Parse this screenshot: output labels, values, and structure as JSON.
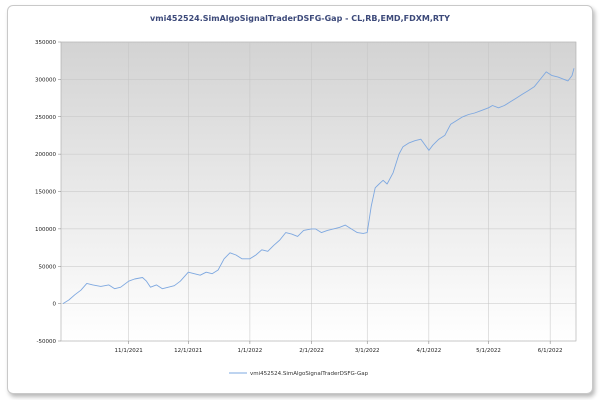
{
  "chart_data": {
    "type": "line",
    "title": "vmi452524.SimAlgoSignalTraderDSFG-Gap - CL,RB,EMD,FDXM,RTY",
    "xlabel": "",
    "ylabel": "",
    "ylim": [
      -50000,
      350000
    ],
    "y_ticks": [
      -50000,
      0,
      50000,
      100000,
      150000,
      200000,
      250000,
      300000,
      350000
    ],
    "y_tick_labels": [
      "-50000",
      "0",
      "50000",
      "100000",
      "150000",
      "200000",
      "250000",
      "300000",
      "350000"
    ],
    "xlim": [
      "2021-09-28",
      "2022-06-14"
    ],
    "x_ticks": [
      "2021-11-01",
      "2021-12-01",
      "2022-01-01",
      "2022-02-01",
      "2022-03-01",
      "2022-04-01",
      "2022-05-01",
      "2022-06-01"
    ],
    "x_tick_labels": [
      "11/1/2021",
      "12/1/2021",
      "1/1/2022",
      "2/1/2022",
      "3/1/2022",
      "4/1/2022",
      "5/1/2022",
      "6/1/2022"
    ],
    "grid": true,
    "legend_position": "bottom",
    "series": [
      {
        "name": "vmi452524.SimAlgoSignalTraderDSFG-Gap",
        "color": "#7ea8e0",
        "x": [
          "2021-09-29",
          "2021-10-02",
          "2021-10-05",
          "2021-10-08",
          "2021-10-11",
          "2021-10-14",
          "2021-10-18",
          "2021-10-22",
          "2021-10-25",
          "2021-10-28",
          "2021-11-01",
          "2021-11-04",
          "2021-11-08",
          "2021-11-10",
          "2021-11-12",
          "2021-11-15",
          "2021-11-18",
          "2021-11-21",
          "2021-11-24",
          "2021-11-27",
          "2021-12-01",
          "2021-12-04",
          "2021-12-07",
          "2021-12-10",
          "2021-12-13",
          "2021-12-16",
          "2021-12-19",
          "2021-12-22",
          "2021-12-25",
          "2021-12-28",
          "2022-01-01",
          "2022-01-04",
          "2022-01-07",
          "2022-01-10",
          "2022-01-13",
          "2022-01-16",
          "2022-01-19",
          "2022-01-22",
          "2022-01-25",
          "2022-01-28",
          "2022-02-01",
          "2022-02-03",
          "2022-02-06",
          "2022-02-09",
          "2022-02-12",
          "2022-02-15",
          "2022-02-18",
          "2022-02-21",
          "2022-02-24",
          "2022-02-27",
          "2022-03-01",
          "2022-03-03",
          "2022-03-05",
          "2022-03-07",
          "2022-03-09",
          "2022-03-11",
          "2022-03-14",
          "2022-03-17",
          "2022-03-19",
          "2022-03-22",
          "2022-03-25",
          "2022-03-28",
          "2022-04-01",
          "2022-04-03",
          "2022-04-06",
          "2022-04-09",
          "2022-04-12",
          "2022-04-15",
          "2022-04-18",
          "2022-04-21",
          "2022-04-24",
          "2022-04-27",
          "2022-05-01",
          "2022-05-03",
          "2022-05-06",
          "2022-05-09",
          "2022-05-12",
          "2022-05-15",
          "2022-05-18",
          "2022-05-21",
          "2022-05-24",
          "2022-05-27",
          "2022-05-30",
          "2022-06-02",
          "2022-06-05",
          "2022-06-08",
          "2022-06-10",
          "2022-06-12",
          "2022-06-13"
        ],
        "values": [
          0,
          5000,
          12000,
          18000,
          27000,
          25000,
          23000,
          25000,
          20000,
          22000,
          30000,
          33000,
          35000,
          30000,
          22000,
          25000,
          20000,
          22000,
          24000,
          30000,
          42000,
          40000,
          38000,
          42000,
          40000,
          45000,
          60000,
          68000,
          65000,
          60000,
          60000,
          65000,
          72000,
          70000,
          78000,
          85000,
          95000,
          93000,
          90000,
          98000,
          100000,
          100000,
          95000,
          98000,
          100000,
          102000,
          105000,
          100000,
          95000,
          94000,
          95000,
          130000,
          155000,
          160000,
          165000,
          160000,
          175000,
          200000,
          210000,
          215000,
          218000,
          220000,
          205000,
          212000,
          220000,
          225000,
          240000,
          245000,
          250000,
          253000,
          255000,
          258000,
          262000,
          265000,
          262000,
          265000,
          270000,
          275000,
          280000,
          285000,
          290000,
          300000,
          310000,
          305000,
          303000,
          300000,
          298000,
          305000,
          315000
        ]
      }
    ]
  }
}
